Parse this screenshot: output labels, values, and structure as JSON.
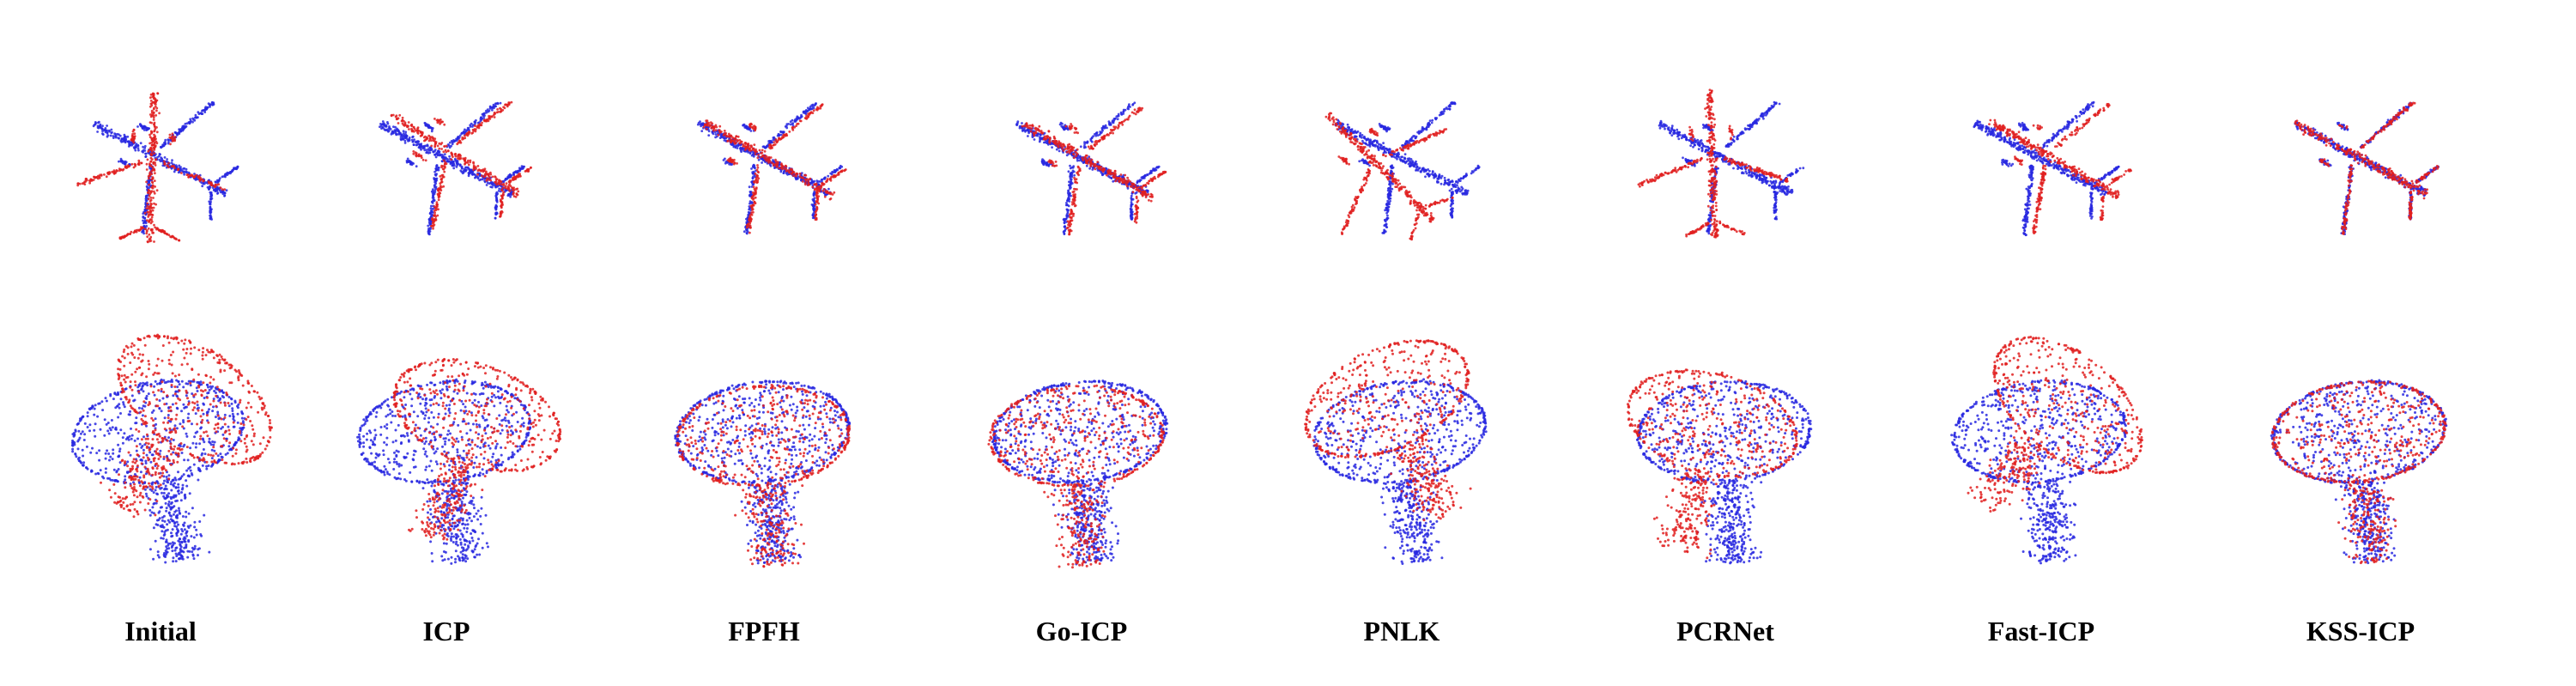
{
  "figure": {
    "rows": [
      "airplane",
      "toilet"
    ],
    "colors": {
      "source": "#e02020",
      "target": "#2828e0"
    },
    "methods": [
      {
        "label": "Initial"
      },
      {
        "label": "ICP"
      },
      {
        "label": "FPFH"
      },
      {
        "label": "Go-ICP"
      },
      {
        "label": "PNLK"
      },
      {
        "label": "PCRNet"
      },
      {
        "label": "Fast-ICP"
      },
      {
        "label": "KSS-ICP"
      }
    ]
  }
}
